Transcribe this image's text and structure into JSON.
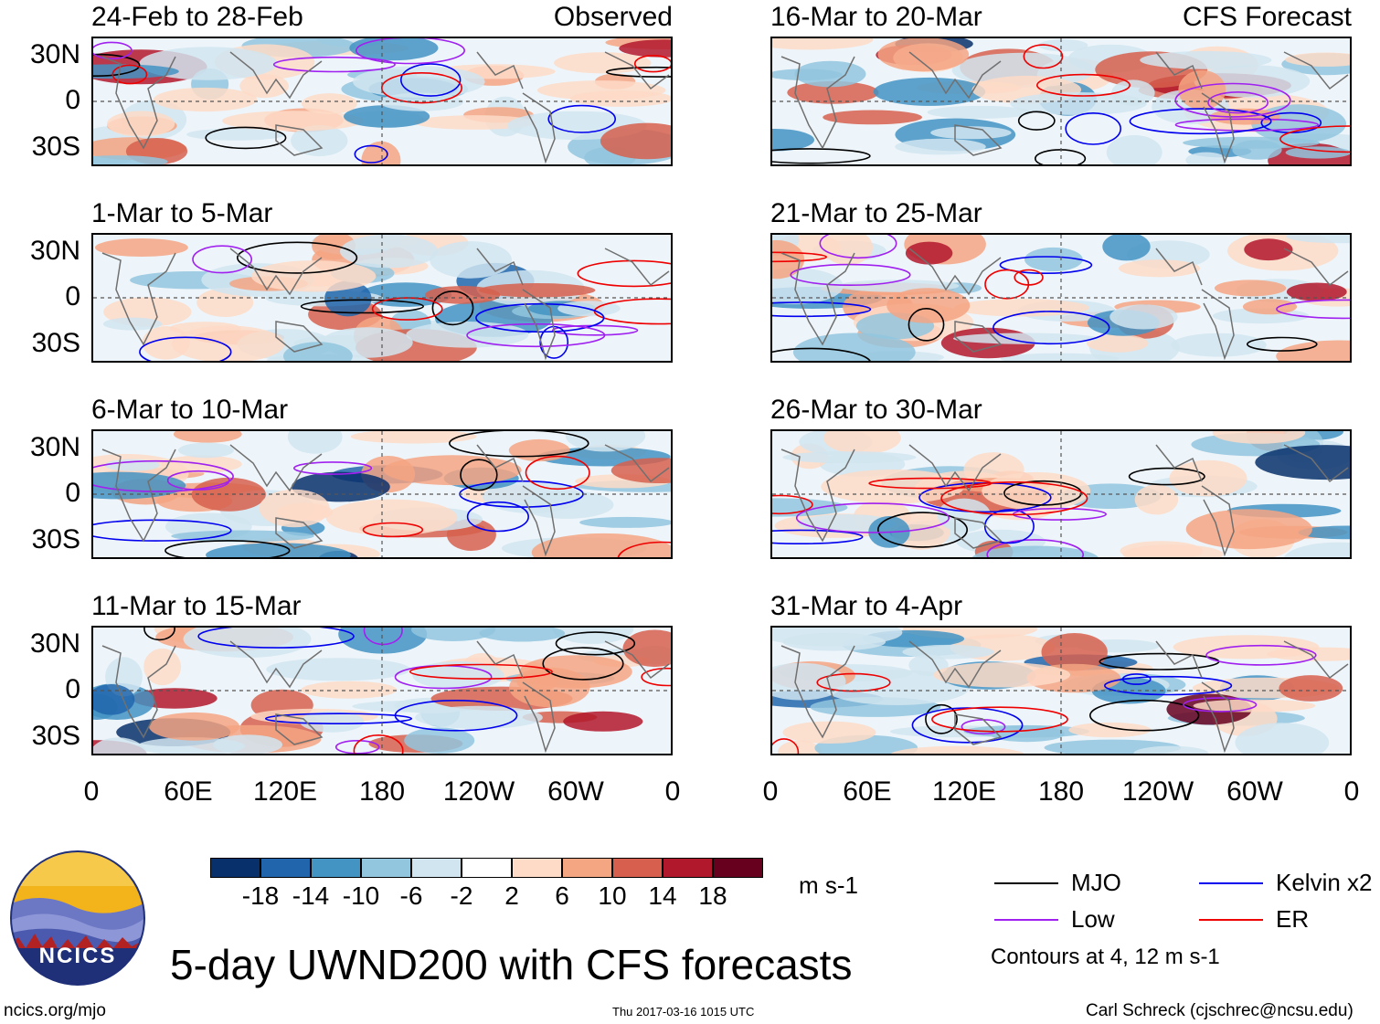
{
  "panels": [
    {
      "id": "p1",
      "title": "24-Feb to 28-Feb",
      "tag": "Observed",
      "col": 0,
      "row": 0
    },
    {
      "id": "p2",
      "title": "1-Mar to 5-Mar",
      "tag": "",
      "col": 0,
      "row": 1
    },
    {
      "id": "p3",
      "title": "6-Mar to 10-Mar",
      "tag": "",
      "col": 0,
      "row": 2
    },
    {
      "id": "p4",
      "title": "11-Mar to 15-Mar",
      "tag": "",
      "col": 0,
      "row": 3
    },
    {
      "id": "p5",
      "title": "16-Mar to 20-Mar",
      "tag": "CFS Forecast",
      "col": 1,
      "row": 0
    },
    {
      "id": "p6",
      "title": "21-Mar to 25-Mar",
      "tag": "",
      "col": 1,
      "row": 1
    },
    {
      "id": "p7",
      "title": "26-Mar to 30-Mar",
      "tag": "",
      "col": 1,
      "row": 2
    },
    {
      "id": "p8",
      "title": "31-Mar to 4-Apr",
      "tag": "",
      "col": 1,
      "row": 3
    }
  ],
  "lat_labels": [
    "30N",
    "0",
    "30S"
  ],
  "lon_labels": [
    "0",
    "60E",
    "120E",
    "180",
    "120W",
    "60W",
    "0"
  ],
  "colorbar": {
    "colors": [
      "#08306b",
      "#2166ac",
      "#4393c3",
      "#92c5de",
      "#d1e5f0",
      "#ffffff",
      "#fddbc7",
      "#f4a582",
      "#d6604d",
      "#b2182b",
      "#67001f"
    ],
    "ticks": [
      "-18",
      "-14",
      "-10",
      "-6",
      "-2",
      "2",
      "6",
      "10",
      "14",
      "18"
    ],
    "units": "m s-1"
  },
  "legend": {
    "items": [
      {
        "label": "MJO",
        "color": "#000000"
      },
      {
        "label": "Kelvin x2",
        "color": "#0000ee"
      },
      {
        "label": "Low",
        "color": "#a020f0"
      },
      {
        "label": "ER",
        "color": "#ee0000"
      }
    ],
    "note": "Contours at 4, 12 m s-1"
  },
  "logo": {
    "text": "NCICS"
  },
  "main_title": "5-day UWND200 with CFS forecasts",
  "footer": {
    "left": "ncics.org/mjo",
    "center": "Thu 2017-03-16 1015 UTC",
    "right": "Carl Schreck (cjschrec@ncsu.edu)"
  }
}
